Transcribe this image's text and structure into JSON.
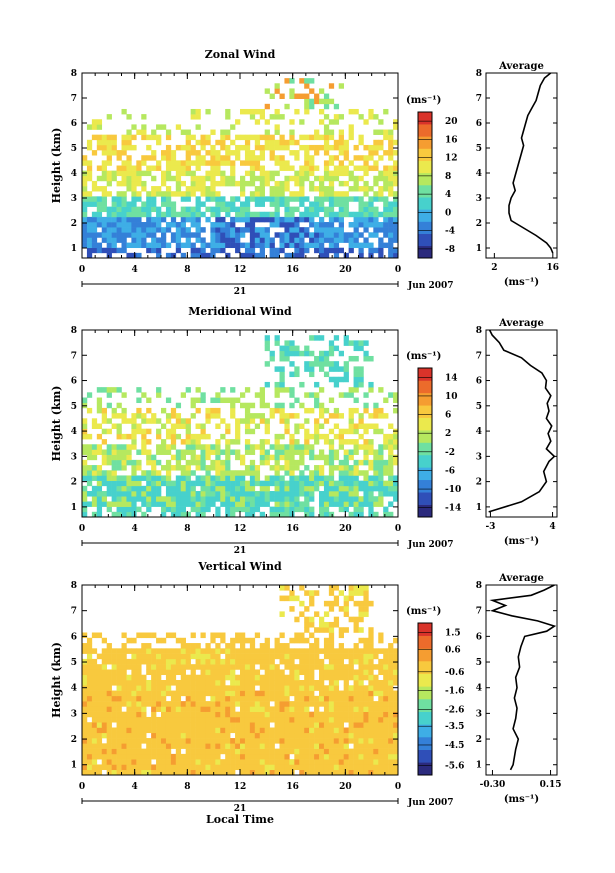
{
  "chart_data": [
    {
      "type": "heatmap",
      "title": "Zonal Wind",
      "ylabel": "Height (km)",
      "xticks": [
        "0",
        "4",
        "8",
        "12",
        "16",
        "20",
        "0"
      ],
      "yticks": [
        "1",
        "2",
        "3",
        "4",
        "5",
        "6",
        "7",
        "8"
      ],
      "ylim": [
        0.6,
        8
      ],
      "xlim": [
        0,
        24
      ],
      "date_label": "21",
      "month_label": "Jun 2007",
      "colorbar": {
        "unit": "(ms⁻¹)",
        "ticks": [
          "-8",
          "-4",
          "0",
          "4",
          "8",
          "12",
          "16",
          "20"
        ],
        "range": [
          -10,
          22
        ]
      },
      "profile": {
        "title": "Average",
        "xlabel": "(ms⁻¹)",
        "xticks": [
          "2",
          "16"
        ],
        "xlim": [
          0,
          17
        ],
        "yticks": [
          "1",
          "2",
          "3",
          "4",
          "5",
          "6",
          "7",
          "8"
        ],
        "heights": [
          0.8,
          1.0,
          1.2,
          1.5,
          1.8,
          2.1,
          2.4,
          2.7,
          3.0,
          3.3,
          3.6,
          3.9,
          4.2,
          4.5,
          4.8,
          5.1,
          5.4,
          5.7,
          6.0,
          6.3,
          6.6,
          6.9,
          7.2,
          7.5,
          7.8,
          8.0
        ],
        "values": [
          16,
          15.5,
          14.5,
          12,
          9,
          6,
          5.5,
          5.5,
          6,
          7,
          6.5,
          7,
          7.5,
          8,
          8.5,
          9,
          8.5,
          9,
          9.5,
          10,
          11,
          12,
          12.5,
          13,
          14,
          15.5
        ]
      }
    },
    {
      "type": "heatmap",
      "title": "Meridional Wind",
      "ylabel": "Height (km)",
      "xticks": [
        "0",
        "4",
        "8",
        "12",
        "16",
        "20",
        "0"
      ],
      "yticks": [
        "1",
        "2",
        "3",
        "4",
        "5",
        "6",
        "7",
        "8"
      ],
      "ylim": [
        0.6,
        8
      ],
      "xlim": [
        0,
        24
      ],
      "date_label": "21",
      "month_label": "Jun 2007",
      "colorbar": {
        "unit": "(ms⁻¹)",
        "ticks": [
          "-14",
          "-10",
          "-6",
          "-2",
          "2",
          "6",
          "10",
          "14"
        ],
        "range": [
          -16,
          16
        ]
      },
      "profile": {
        "title": "Average",
        "xlabel": "(ms⁻¹)",
        "xticks": [
          "-3",
          "4"
        ],
        "xlim": [
          -3.5,
          4.5
        ],
        "yticks": [
          "1",
          "2",
          "3",
          "4",
          "5",
          "6",
          "7",
          "8"
        ],
        "heights": [
          0.8,
          1.2,
          1.6,
          2.0,
          2.4,
          2.8,
          3.0,
          3.3,
          3.6,
          3.9,
          4.2,
          4.5,
          4.8,
          5.1,
          5.4,
          5.7,
          6.0,
          6.3,
          6.6,
          6.9,
          7.2,
          7.5,
          7.8,
          8.0
        ],
        "values": [
          -3.2,
          0.5,
          2.5,
          3.3,
          3.0,
          3.6,
          4.2,
          3.3,
          3.8,
          3.5,
          3.9,
          3.3,
          3.6,
          3.4,
          3.8,
          3.2,
          3.3,
          2.8,
          1.5,
          0.5,
          -1.5,
          -2.0,
          -2.8,
          -3.1
        ]
      }
    },
    {
      "type": "heatmap",
      "title": "Vertical Wind",
      "ylabel": "Height (km)",
      "xlabel": "Local Time",
      "xticks": [
        "0",
        "4",
        "8",
        "12",
        "16",
        "20",
        "0"
      ],
      "yticks": [
        "1",
        "2",
        "3",
        "4",
        "5",
        "6",
        "7",
        "8"
      ],
      "ylim": [
        0.6,
        8
      ],
      "xlim": [
        0,
        24
      ],
      "date_label": "21",
      "month_label": "Jun 2007",
      "colorbar": {
        "unit": "(ms⁻¹)",
        "ticks": [
          "-5.6",
          "-4.5",
          "-3.5",
          "-2.6",
          "-1.6",
          "-0.6",
          "0.6",
          "1.5"
        ],
        "range": [
          -6.1,
          2.0
        ]
      },
      "profile": {
        "title": "Average",
        "xlabel": "(ms⁻¹)",
        "xticks": [
          "-0.30",
          "0.15"
        ],
        "xlim": [
          -0.35,
          0.2
        ],
        "yticks": [
          "1",
          "2",
          "3",
          "4",
          "5",
          "6",
          "7",
          "8"
        ],
        "heights": [
          0.8,
          1.0,
          1.3,
          1.6,
          2.0,
          2.4,
          2.8,
          3.2,
          3.6,
          4.0,
          4.4,
          4.8,
          5.2,
          5.6,
          6.0,
          6.2,
          6.4,
          6.6,
          6.8,
          7.0,
          7.2,
          7.4,
          7.6,
          7.8,
          8.0
        ],
        "values": [
          -0.16,
          -0.14,
          -0.13,
          -0.12,
          -0.1,
          -0.14,
          -0.12,
          -0.11,
          -0.13,
          -0.11,
          -0.12,
          -0.09,
          -0.1,
          -0.08,
          -0.05,
          0.12,
          0.18,
          0.05,
          -0.15,
          -0.3,
          -0.2,
          -0.3,
          0.0,
          0.1,
          0.18
        ]
      }
    }
  ]
}
